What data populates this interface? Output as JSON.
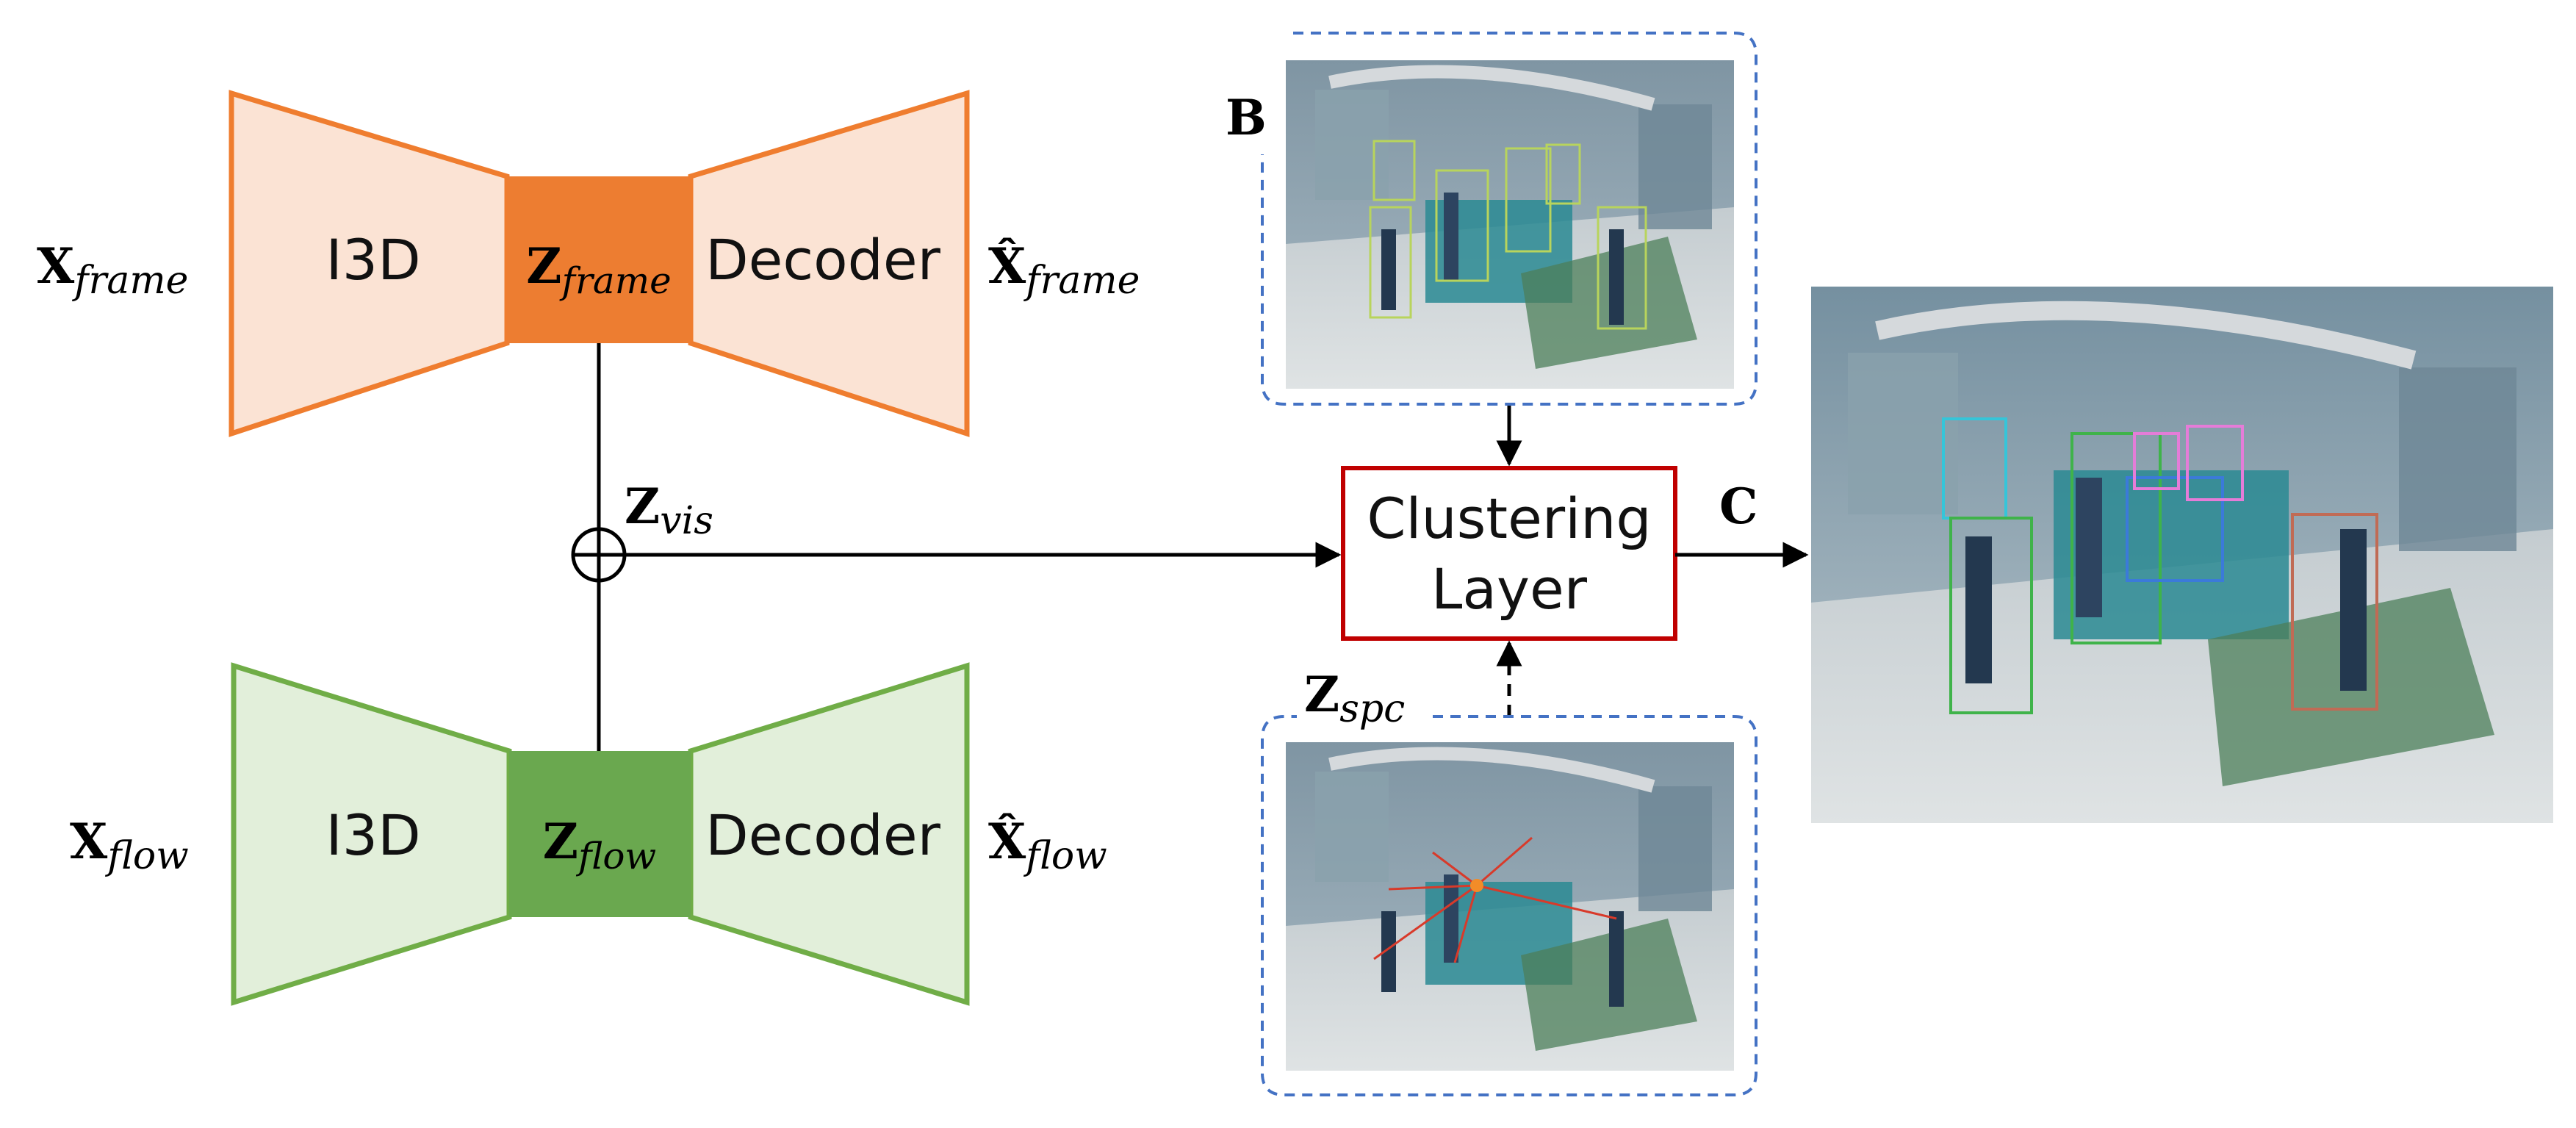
{
  "encoders": {
    "frame": {
      "encoder_label": "I3D",
      "decoder_label": "Decoder",
      "input": {
        "sym": "X",
        "sub": "frame"
      },
      "latent": {
        "sym": "Z",
        "sub": "frame"
      },
      "output": {
        "sym": "X̂",
        "sub": "frame"
      }
    },
    "flow": {
      "encoder_label": "I3D",
      "decoder_label": "Decoder",
      "input": {
        "sym": "X",
        "sub": "flow"
      },
      "latent": {
        "sym": "Z",
        "sub": "flow"
      },
      "output": {
        "sym": "X̂",
        "sub": "flow"
      }
    }
  },
  "fusion": {
    "sym": "Z",
    "sub": "vis"
  },
  "spatial": {
    "sym": "Z",
    "sub": "spc"
  },
  "clustering": {
    "line1": "Clustering",
    "line2": "Layer"
  },
  "labels": {
    "bbox_input": "B",
    "output": "C"
  },
  "colors": {
    "frame_stroke": "#ef7d2f",
    "frame_fill": "#fbe3d4",
    "frame_latent": "#ed7d31",
    "flow_stroke": "#70ad47",
    "flow_fill": "#e2efda",
    "flow_latent": "#6aa84f",
    "cluster_border": "#c00000",
    "dashed_border": "#4472c4"
  }
}
